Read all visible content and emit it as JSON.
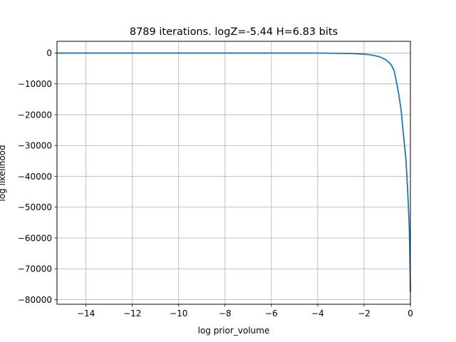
{
  "chart_data": {
    "type": "line",
    "title": "8789 iterations. logZ=-5.44 H=6.83 bits",
    "xlabel": "log prior_volume",
    "ylabel": "log likelihood",
    "xlim": [
      -15.25,
      0.0
    ],
    "ylim": [
      -81500,
      3800
    ],
    "grid": true,
    "xticks": [
      -14,
      -12,
      -10,
      -8,
      -6,
      -4,
      -2,
      0
    ],
    "xtick_labels": [
      "−14",
      "−12",
      "−10",
      "−8",
      "−6",
      "−4",
      "−2",
      "0"
    ],
    "yticks": [
      0,
      -10000,
      -20000,
      -30000,
      -40000,
      -50000,
      -60000,
      -70000,
      -80000
    ],
    "ytick_labels": [
      "0",
      "−10000",
      "−20000",
      "−30000",
      "−40000",
      "−50000",
      "−60000",
      "−70000",
      "−80000"
    ],
    "series": [
      {
        "color": "#1f77b4",
        "x": [
          -15.25,
          -12,
          -8,
          -5,
          -4,
          -3,
          -2.5,
          -2,
          -1.7,
          -1.5,
          -1.3,
          -1.1,
          -0.9,
          -0.8,
          -0.7,
          -0.6,
          -0.5,
          -0.4,
          -0.3,
          -0.2,
          -0.15,
          -0.1,
          -0.05,
          -0.03,
          0
        ],
        "y": [
          0,
          0,
          0,
          0,
          -20,
          -100,
          -180,
          -350,
          -600,
          -900,
          -1300,
          -2000,
          -3200,
          -4200,
          -5800,
          -9500,
          -13500,
          -18500,
          -26500,
          -34000,
          -40000,
          -47500,
          -56000,
          -63000,
          -77500
        ]
      }
    ]
  }
}
